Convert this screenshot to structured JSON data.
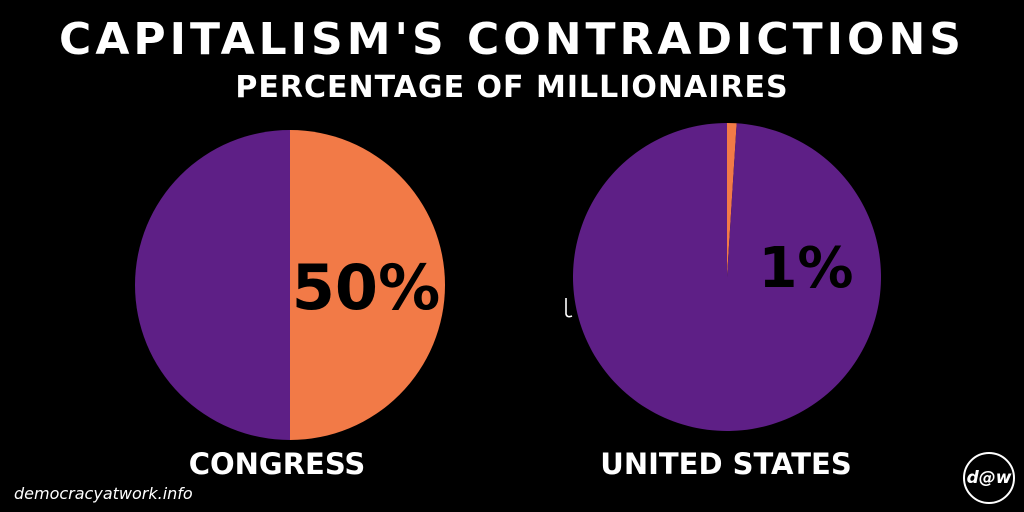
{
  "title": "CAPITALISM'S CONTRADICTIONS",
  "subtitle": "PERCENTAGE OF MILLIONAIRES",
  "colors": {
    "background": "#000000",
    "millionaire": "#F27A47",
    "rest": "#5E1F86",
    "text": "#FFFFFF",
    "slice_label": "#000000"
  },
  "chart_data": [
    {
      "type": "pie",
      "category": "CONGRESS",
      "slices": [
        {
          "value": 50,
          "color": "#F27A47"
        },
        {
          "value": 50,
          "color": "#5E1F86"
        }
      ],
      "label": "50%"
    },
    {
      "type": "pie",
      "category": "UNITED STATES",
      "slices": [
        {
          "value": 1,
          "color": "#F27A47"
        },
        {
          "value": 99,
          "color": "#5E1F86"
        }
      ],
      "label": "1%"
    }
  ],
  "footer": {
    "website": "democracyatwork.info",
    "logo_text": "d@w"
  }
}
